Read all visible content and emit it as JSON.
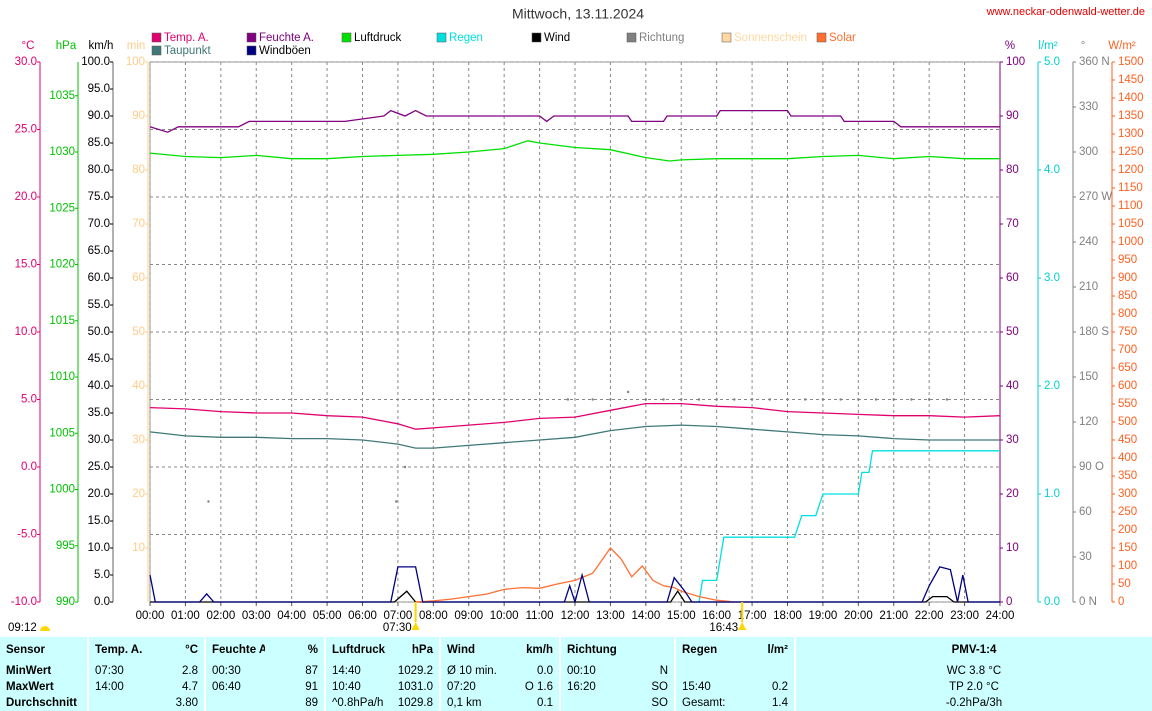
{
  "header": {
    "title": "Mittwoch, 13.11.2024",
    "url": "www.neckar-odenwald-wetter.de"
  },
  "chart_data": {
    "type": "line",
    "xlim": [
      0,
      24
    ],
    "grid": true,
    "xticks": [
      {
        "value": 0,
        "label": "00:00"
      },
      {
        "value": 1,
        "label": "01:00"
      },
      {
        "value": 2,
        "label": "02:00"
      },
      {
        "value": 3,
        "label": "03:00"
      },
      {
        "value": 4,
        "label": "04:00"
      },
      {
        "value": 5,
        "label": "05:00"
      },
      {
        "value": 6,
        "label": "06:00"
      },
      {
        "value": 7,
        "label": "07:00"
      },
      {
        "value": 8,
        "label": "08:00"
      },
      {
        "value": 9,
        "label": "09:00"
      },
      {
        "value": 10,
        "label": "10:00"
      },
      {
        "value": 11,
        "label": "11:00"
      },
      {
        "value": 12,
        "label": "12:00"
      },
      {
        "value": 13,
        "label": "13:00"
      },
      {
        "value": 14,
        "label": "14:00"
      },
      {
        "value": 15,
        "label": "15:00"
      },
      {
        "value": 16,
        "label": "16:00"
      },
      {
        "value": 17,
        "label": "17:00"
      },
      {
        "value": 18,
        "label": "18:00"
      },
      {
        "value": 19,
        "label": "19:00"
      },
      {
        "value": 20,
        "label": "20:00"
      },
      {
        "value": 21,
        "label": "21:00"
      },
      {
        "value": 22,
        "label": "22:00"
      },
      {
        "value": 23,
        "label": "23:00"
      },
      {
        "value": 24,
        "label": "24:00"
      }
    ],
    "axes": [
      {
        "label": "°C",
        "side": "left",
        "color": "#e0006f",
        "ylim": [
          -10,
          30
        ],
        "yticks": [
          {
            "value": -10,
            "label": "-10.0"
          },
          {
            "value": -5,
            "label": "-5.0"
          },
          {
            "value": 0,
            "label": "0.0"
          },
          {
            "value": 5,
            "label": "5.0"
          },
          {
            "value": 10,
            "label": "10.0"
          },
          {
            "value": 15,
            "label": "15.0"
          },
          {
            "value": 20,
            "label": "20.0"
          },
          {
            "value": 25,
            "label": "25.0"
          },
          {
            "value": 30,
            "label": "30.0"
          }
        ]
      },
      {
        "label": "hPa",
        "side": "left",
        "color": "#00c000",
        "ylim": [
          990,
          1038
        ],
        "yticks": [
          990,
          995,
          1000,
          1005,
          1010,
          1015,
          1020,
          1025,
          1030,
          1035
        ]
      },
      {
        "label": "km/h",
        "side": "left",
        "color": "#000000",
        "ylim": [
          0,
          100
        ],
        "yticks": [
          {
            "value": 0,
            "label": "0.0"
          },
          {
            "value": 5,
            "label": "5.0"
          },
          {
            "value": 10,
            "label": "10.0"
          },
          {
            "value": 15,
            "label": "15.0"
          },
          {
            "value": 20,
            "label": "20.0"
          },
          {
            "value": 25,
            "label": "25.0"
          },
          {
            "value": 30,
            "label": "30.0"
          },
          {
            "value": 35,
            "label": "35.0"
          },
          {
            "value": 40,
            "label": "40.0"
          },
          {
            "value": 45,
            "label": "45.0"
          },
          {
            "value": 50,
            "label": "50.0"
          },
          {
            "value": 55,
            "label": "55.0"
          },
          {
            "value": 60,
            "label": "60.0"
          },
          {
            "value": 65,
            "label": "65.0"
          },
          {
            "value": 70,
            "label": "70.0"
          },
          {
            "value": 75,
            "label": "75.0"
          },
          {
            "value": 80,
            "label": "80.0"
          },
          {
            "value": 85,
            "label": "85.0"
          },
          {
            "value": 90,
            "label": "90.0"
          },
          {
            "value": 95,
            "label": "95.0"
          },
          {
            "value": 100,
            "label": "100.0"
          }
        ]
      },
      {
        "label": "min",
        "side": "left",
        "color": "#ffcc88",
        "ylim": [
          0,
          100
        ],
        "yticks": [
          10,
          20,
          30,
          40,
          50,
          60,
          70,
          80,
          90,
          100
        ]
      },
      {
        "label": "%",
        "side": "right",
        "color": "#800080",
        "ylim": [
          0,
          100
        ],
        "yticks": [
          0,
          10,
          20,
          30,
          40,
          50,
          60,
          70,
          80,
          90,
          100
        ]
      },
      {
        "label": "l/m²",
        "side": "right",
        "color": "#00d0d0",
        "ylim": [
          0,
          5
        ],
        "yticks": [
          {
            "value": 0,
            "label": "0.0"
          },
          {
            "value": 1,
            "label": "1.0"
          },
          {
            "value": 2,
            "label": "2.0"
          },
          {
            "value": 3,
            "label": "3.0"
          },
          {
            "value": 4,
            "label": "4.0"
          },
          {
            "value": 5,
            "label": "5.0"
          }
        ]
      },
      {
        "label": "°",
        "side": "right",
        "color": "#808080",
        "ylim": [
          0,
          360
        ],
        "yticks": [
          {
            "value": 0,
            "label": "0 N"
          },
          30,
          60,
          {
            "value": 90,
            "label": "90 O"
          },
          120,
          150,
          {
            "value": 180,
            "label": "180 S"
          },
          210,
          240,
          {
            "value": 270,
            "label": "270 W"
          },
          300,
          330,
          {
            "value": 360,
            "label": "360 N"
          }
        ]
      },
      {
        "label": "W/m²",
        "side": "right",
        "color": "#ff6020",
        "ylim": [
          0,
          1500
        ],
        "yticks": [
          0,
          50,
          100,
          150,
          200,
          250,
          300,
          350,
          400,
          450,
          500,
          550,
          600,
          650,
          700,
          750,
          800,
          850,
          900,
          950,
          1000,
          1050,
          1100,
          1150,
          1200,
          1250,
          1300,
          1350,
          1400,
          1450,
          1500
        ]
      }
    ],
    "series": [
      {
        "name": "Temp. A.",
        "color": "#e0006f",
        "axis": "°C",
        "x": [
          0,
          1,
          2,
          3,
          4,
          5,
          6,
          7,
          7.5,
          8,
          9,
          10,
          11,
          12,
          13,
          14,
          15,
          16,
          17,
          18,
          19,
          20,
          21,
          22,
          23,
          24
        ],
        "values": [
          4.4,
          4.3,
          4.1,
          4.0,
          4.0,
          3.8,
          3.7,
          3.2,
          2.8,
          2.9,
          3.1,
          3.3,
          3.6,
          3.7,
          4.2,
          4.7,
          4.7,
          4.5,
          4.4,
          4.1,
          4.0,
          3.9,
          3.8,
          3.8,
          3.7,
          3.8
        ]
      },
      {
        "name": "Feuchte A.",
        "color": "#800080",
        "axis": "%",
        "x": [
          0,
          0.5,
          0.8,
          2.5,
          2.8,
          3.0,
          5.5,
          6.6,
          6.8,
          7.2,
          7.5,
          7.8,
          11.0,
          11.2,
          11.4,
          13.5,
          13.6,
          14.5,
          14.6,
          16.0,
          16.1,
          18.0,
          18.1,
          19.5,
          19.6,
          21.0,
          21.2,
          24
        ],
        "values": [
          88,
          87,
          88,
          88,
          89,
          89,
          89,
          90,
          91,
          90,
          91,
          90,
          90,
          89,
          90,
          90,
          89,
          89,
          90,
          90,
          91,
          91,
          90,
          90,
          89,
          89,
          88,
          88
        ]
      },
      {
        "name": "Luftdruck",
        "color": "#00e000",
        "axis": "hPa",
        "x": [
          0,
          1,
          2,
          3,
          4,
          5,
          6,
          7,
          8,
          9,
          10,
          10.67,
          11,
          12,
          13,
          14,
          14.67,
          15,
          16,
          17,
          18,
          19,
          20,
          21,
          22,
          23,
          24
        ],
        "values": [
          1029.9,
          1029.6,
          1029.5,
          1029.7,
          1029.4,
          1029.4,
          1029.6,
          1029.7,
          1029.8,
          1030.0,
          1030.3,
          1031.0,
          1030.8,
          1030.4,
          1030.2,
          1029.5,
          1029.2,
          1029.3,
          1029.4,
          1029.4,
          1029.4,
          1029.6,
          1029.7,
          1029.4,
          1029.6,
          1029.4,
          1029.4
        ]
      },
      {
        "name": "Regen",
        "color": "#00e0e0",
        "axis": "l/m²",
        "x": [
          15.5,
          15.6,
          16.0,
          16.2,
          18.2,
          18.4,
          18.8,
          19.0,
          20.0,
          20.1,
          20.3,
          20.4,
          24
        ],
        "values": [
          0,
          0.2,
          0.2,
          0.6,
          0.6,
          0.8,
          0.8,
          1.0,
          1.0,
          1.2,
          1.2,
          1.4,
          1.4
        ]
      },
      {
        "name": "Wind",
        "color": "#000000",
        "axis": "km/h",
        "x": [
          0,
          6.9,
          7.25,
          7.5,
          14.7,
          14.9,
          15.1,
          21.9,
          22.1,
          22.5,
          22.7,
          24
        ],
        "values": [
          0,
          0,
          2,
          0,
          0,
          2,
          0,
          0,
          1,
          1,
          0,
          0
        ]
      },
      {
        "name": "Richtung",
        "color": "#808080",
        "axis": "°",
        "type": "scatter",
        "x": [
          1.65,
          6.95,
          7.2,
          11.8,
          12.5,
          13,
          13.5,
          14,
          14.5,
          15,
          15.5,
          16,
          16.5,
          17,
          17.5,
          18,
          18.5,
          19,
          19.5,
          20,
          20.5,
          21,
          21.5,
          22,
          22.5
        ],
        "values": [
          67,
          67,
          90,
          135,
          135,
          135,
          140,
          135,
          135,
          135,
          135,
          135,
          135,
          135,
          135,
          135,
          135,
          135,
          135,
          135,
          135,
          135,
          135,
          135,
          135
        ]
      },
      {
        "name": "Sonnenschein",
        "color": "#ffd8a0",
        "axis": "min",
        "x": [],
        "values": []
      },
      {
        "name": "Solar",
        "color": "#ff7030",
        "axis": "W/m²",
        "x": [
          7.5,
          8,
          8.5,
          9,
          9.5,
          10,
          10.5,
          11,
          11.5,
          12,
          12.5,
          13,
          13.3,
          13.6,
          13.9,
          14.2,
          14.5,
          14.8,
          15,
          15.5,
          16,
          16.5
        ],
        "values": [
          0,
          3,
          8,
          15,
          22,
          35,
          40,
          38,
          50,
          60,
          80,
          150,
          120,
          70,
          100,
          60,
          45,
          40,
          30,
          15,
          5,
          0
        ]
      },
      {
        "name": "Taupunkt",
        "color": "#407878",
        "axis": "°C",
        "x": [
          0,
          1,
          2,
          3,
          4,
          5,
          6,
          7,
          7.5,
          8,
          9,
          10,
          11,
          12,
          13,
          14,
          15,
          16,
          17,
          18,
          19,
          20,
          21,
          22,
          23,
          24
        ],
        "values": [
          2.6,
          2.3,
          2.2,
          2.2,
          2.1,
          2.1,
          2.0,
          1.7,
          1.4,
          1.4,
          1.6,
          1.8,
          2.0,
          2.2,
          2.7,
          3.0,
          3.1,
          3.0,
          2.8,
          2.6,
          2.4,
          2.3,
          2.1,
          2.0,
          2.0,
          2.0
        ]
      },
      {
        "name": "Windböen",
        "color": "#000080",
        "axis": "km/h",
        "x": [
          0,
          0.15,
          1.4,
          1.6,
          1.8,
          6.8,
          7.0,
          7.5,
          7.7,
          11.7,
          11.85,
          12.0,
          12.2,
          12.4,
          14.6,
          14.8,
          15.1,
          15.3,
          21.8,
          22.0,
          22.3,
          22.6,
          22.8,
          22.95,
          23.1,
          24
        ],
        "values": [
          5,
          0,
          0,
          1.5,
          0,
          0,
          6.5,
          6.5,
          0,
          0,
          3,
          0,
          5,
          0,
          0,
          4.5,
          2,
          0,
          0,
          3,
          6.5,
          6,
          0,
          5,
          0,
          0
        ]
      }
    ],
    "sun_markers": [
      {
        "value": 7.5,
        "label": "07:30"
      },
      {
        "value": 16.72,
        "label": "16:43"
      }
    ],
    "sunshine_duration": "09:12"
  },
  "table": {
    "header": [
      "Sensor",
      "Temp. A.",
      "°C",
      "Feuchte A.",
      "%",
      "Luftdruck",
      "hPa",
      "Wind",
      "km/h",
      "Richtung",
      null,
      "Regen",
      "l/m²",
      "PMV-1:4"
    ],
    "rows": [
      [
        "MinWert",
        "07:30",
        "2.8",
        "00:30",
        "87",
        "14:40",
        "1029.2",
        "Ø 10 min.",
        "0.0",
        "00:10",
        "N",
        null,
        null,
        "WC 3.8 °C"
      ],
      [
        "MaxWert",
        "14:00",
        "4.7",
        "06:40",
        "91",
        "10:40",
        "1031.0",
        "07:20",
        "O 1.6",
        "16:20",
        "SO",
        "15:40",
        "0.2",
        "TP 2.0 °C"
      ],
      [
        "Durchschnitt",
        null,
        "3.80",
        null,
        "89",
        "^0.8hPa/h",
        "1029.8",
        "0,1 km",
        "0.1",
        null,
        "SO",
        "Gesamt:",
        "1.4",
        "-0.2hPa/3h"
      ]
    ]
  }
}
